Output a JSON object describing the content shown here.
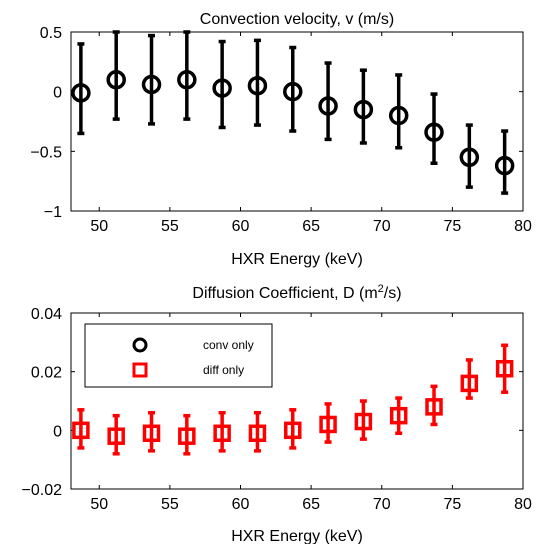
{
  "chart_data": [
    {
      "type": "scatter",
      "title": "Convection velocity, v (m/s)",
      "xlabel": "HXR Energy (keV)",
      "ylabel": "",
      "xlim": [
        48,
        80
      ],
      "ylim": [
        -1,
        0.5
      ],
      "xticks": [
        50,
        55,
        60,
        65,
        70,
        75,
        80
      ],
      "yticks": [
        0.5,
        0,
        -0.5,
        -1
      ],
      "ytick_labels": [
        "0.5",
        "0",
        "−0.5",
        "−1"
      ],
      "grid": false,
      "series": [
        {
          "marker": "circle",
          "color": "#000000",
          "x": [
            48.7,
            51.2,
            53.7,
            56.2,
            58.7,
            61.2,
            63.7,
            66.2,
            68.7,
            71.2,
            73.7,
            76.2,
            78.7
          ],
          "y": [
            -0.01,
            0.1,
            0.06,
            0.1,
            0.03,
            0.05,
            0.0,
            -0.12,
            -0.15,
            -0.2,
            -0.34,
            -0.55,
            -0.62
          ],
          "err_low": [
            -0.35,
            -0.23,
            -0.27,
            -0.23,
            -0.3,
            -0.28,
            -0.33,
            -0.4,
            -0.43,
            -0.47,
            -0.6,
            -0.8,
            -0.85
          ],
          "err_high": [
            0.4,
            0.5,
            0.47,
            0.5,
            0.42,
            0.43,
            0.37,
            0.24,
            0.18,
            0.14,
            -0.02,
            -0.28,
            -0.33
          ]
        }
      ]
    },
    {
      "type": "scatter",
      "title": "Diffusion Coefficient, D (m",
      "title_sup": "2",
      "title_end": "/s)",
      "xlabel": "HXR Energy (keV)",
      "ylabel": "",
      "xlim": [
        48,
        80
      ],
      "ylim": [
        -0.02,
        0.04
      ],
      "xticks": [
        50,
        55,
        60,
        65,
        70,
        75,
        80
      ],
      "yticks": [
        0.04,
        0.02,
        0,
        -0.02
      ],
      "ytick_labels": [
        "0.04",
        "0.02",
        "0",
        "−0.02"
      ],
      "grid": false,
      "legend": {
        "placement": "top-left",
        "entries": [
          {
            "label": "conv only",
            "marker": "circle",
            "color": "#000000"
          },
          {
            "label": "diff only",
            "marker": "square",
            "color": "#ff0000"
          }
        ]
      },
      "series": [
        {
          "name": "diff only",
          "marker": "square",
          "color": "#ff0000",
          "x": [
            48.7,
            51.2,
            53.7,
            56.2,
            58.7,
            61.2,
            63.7,
            66.2,
            68.7,
            71.2,
            73.7,
            76.2,
            78.7
          ],
          "y": [
            0.0,
            -0.002,
            -0.001,
            -0.002,
            -0.001,
            -0.001,
            0.0,
            0.002,
            0.003,
            0.005,
            0.008,
            0.016,
            0.021
          ],
          "err_low": [
            -0.006,
            -0.008,
            -0.007,
            -0.008,
            -0.007,
            -0.007,
            -0.006,
            -0.004,
            -0.003,
            -0.001,
            0.002,
            0.011,
            0.013
          ],
          "err_high": [
            0.007,
            0.005,
            0.006,
            0.005,
            0.006,
            0.006,
            0.007,
            0.009,
            0.01,
            0.011,
            0.015,
            0.024,
            0.029
          ]
        }
      ]
    }
  ]
}
